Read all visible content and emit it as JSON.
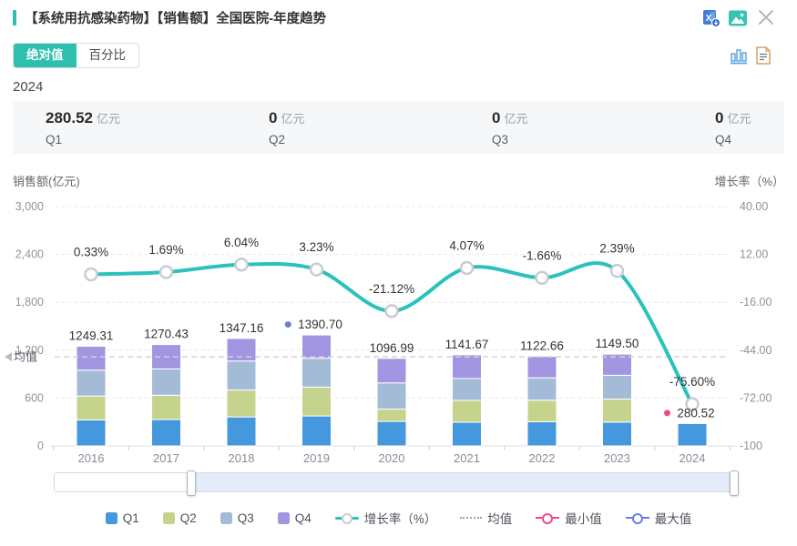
{
  "header": {
    "title": "【系统用抗感染药物】【销售额】全国医院-年度趋势",
    "accent_color": "#2ebfae"
  },
  "tabs": [
    {
      "label": "绝对值",
      "active": true
    },
    {
      "label": "百分比",
      "active": false
    }
  ],
  "period_label": "2024",
  "stats": [
    {
      "value": "280.52",
      "unit": "亿元",
      "label": "Q1"
    },
    {
      "value": "0",
      "unit": "亿元",
      "label": "Q2"
    },
    {
      "value": "0",
      "unit": "亿元",
      "label": "Q3"
    },
    {
      "value": "0",
      "unit": "亿元",
      "label": "Q4"
    }
  ],
  "chart_data": {
    "type": "bar",
    "subtype": "stacked-bars-with-growth-line",
    "categories": [
      "2016",
      "2017",
      "2018",
      "2019",
      "2020",
      "2021",
      "2022",
      "2023",
      "2024"
    ],
    "series": [
      {
        "name": "Q1",
        "type": "bar",
        "color": "#4597de",
        "values": [
          324.8,
          330.3,
          363.7,
          375.5,
          307.2,
          296.8,
          303.1,
          298.9,
          280.52
        ]
      },
      {
        "name": "Q2",
        "type": "bar",
        "color": "#c6d38c",
        "values": [
          299.8,
          304.9,
          336.8,
          361.6,
          153.6,
          274.0,
          269.4,
          287.4,
          0
        ]
      },
      {
        "name": "Q3",
        "type": "bar",
        "color": "#a4bbd8",
        "values": [
          324.8,
          330.3,
          363.7,
          361.6,
          329.1,
          274.0,
          280.7,
          298.9,
          0
        ]
      },
      {
        "name": "Q4",
        "type": "bar",
        "color": "#a295e2",
        "values": [
          299.9,
          304.9,
          282.9,
          291.9,
          307.2,
          296.8,
          269.4,
          264.4,
          0
        ]
      }
    ],
    "totals": [
      1249.31,
      1270.43,
      1347.16,
      1390.7,
      1096.99,
      1141.67,
      1122.66,
      1149.5,
      280.52
    ],
    "total_labels": [
      "1249.31",
      "1270.43",
      "1347.16",
      "1390.70",
      "1096.99",
      "1141.67",
      "1122.66",
      "1149.50",
      "280.52"
    ],
    "line_series": {
      "name": "增长率（%）",
      "color": "#2bc1bd",
      "values": [
        0.33,
        1.69,
        6.04,
        3.23,
        -21.12,
        4.07,
        -1.66,
        2.39,
        -75.6
      ],
      "labels": [
        "0.33%",
        "1.69%",
        "6.04%",
        "3.23%",
        "-21.12%",
        "4.07%",
        "-1.66%",
        "2.39%",
        "-75.60%"
      ]
    },
    "left_axis": {
      "title": "销售额(亿元)",
      "ticks": [
        "3,000",
        "2,400",
        "1,800",
        "1,200",
        "600",
        "0"
      ],
      "values": [
        3000,
        2400,
        1800,
        1200,
        600,
        0
      ],
      "min": 0,
      "max": 3000
    },
    "right_axis": {
      "title": "增长率（%）",
      "ticks": [
        "40.00",
        "12.00",
        "-16.00",
        "-44.00",
        "-72.00",
        "-100"
      ],
      "values": [
        40,
        12,
        -16,
        -44,
        -72,
        -100
      ],
      "min": -100,
      "max": 40
    },
    "mean": {
      "label": "均值",
      "value": 1116.55
    },
    "min_marker": {
      "category": "2024",
      "label": "280.52",
      "color": "#f5458f"
    },
    "max_marker": {
      "category": "2019",
      "label": "1390.70",
      "color": "#6b7ce0"
    },
    "grid": "dashed-horizontal"
  },
  "scrollbar": {
    "start_pct": 20,
    "end_pct": 100
  },
  "legend": [
    {
      "id": "q1",
      "label": "Q1",
      "symbol": "square",
      "color": "#4597de"
    },
    {
      "id": "q2",
      "label": "Q2",
      "symbol": "square",
      "color": "#c6d38c"
    },
    {
      "id": "q3",
      "label": "Q3",
      "symbol": "square",
      "color": "#a4bbd8"
    },
    {
      "id": "q4",
      "label": "Q4",
      "symbol": "square",
      "color": "#a295e2"
    },
    {
      "id": "growth-rate",
      "label": "增长率（%）",
      "symbol": "line-circle",
      "color": "#2bc1bd"
    },
    {
      "id": "mean",
      "label": "均值",
      "symbol": "dotted-line",
      "color": "#9aa0a6"
    },
    {
      "id": "min",
      "label": "最小值",
      "symbol": "ring",
      "color": "#f5458f"
    },
    {
      "id": "max",
      "label": "最大值",
      "symbol": "ring",
      "color": "#6b7ce0"
    }
  ]
}
